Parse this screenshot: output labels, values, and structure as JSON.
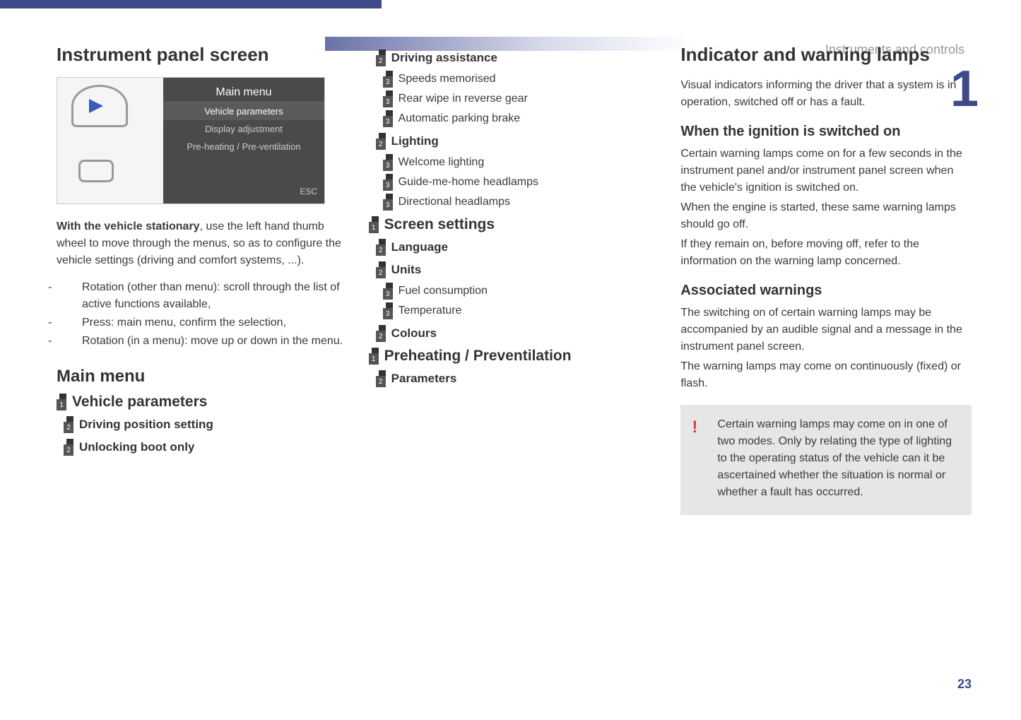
{
  "header": {
    "section_label": "Instruments and controls",
    "chapter_number": "1",
    "page_number": "23"
  },
  "col1": {
    "h1": "Instrument panel screen",
    "screen": {
      "title": "Main menu",
      "items": [
        "Vehicle parameters",
        "Display adjustment",
        "Pre-heating / Pre-ventilation"
      ],
      "esc": "ESC"
    },
    "intro_bold": "With the vehicle stationary",
    "intro_rest": ", use the left hand thumb wheel to move through the menus, so as to configure the vehicle settings (driving and comfort systems, ...).",
    "bullets": [
      "Rotation (other than menu): scroll through the list of active functions available,",
      "Press: main menu, confirm the selection,",
      "Rotation (in a menu): move up or down in the menu."
    ],
    "h2": "Main menu",
    "menu": [
      {
        "level": 1,
        "label": "Vehicle parameters"
      },
      {
        "level": 2,
        "label": "Driving position setting"
      },
      {
        "level": 2,
        "label": "Unlocking boot only"
      }
    ]
  },
  "col2": {
    "menu": [
      {
        "level": 2,
        "label": "Driving assistance"
      },
      {
        "level": 3,
        "label": "Speeds memorised"
      },
      {
        "level": 3,
        "label": "Rear wipe in reverse gear"
      },
      {
        "level": 3,
        "label": "Automatic parking brake"
      },
      {
        "level": 2,
        "label": "Lighting"
      },
      {
        "level": 3,
        "label": "Welcome lighting"
      },
      {
        "level": 3,
        "label": "Guide-me-home headlamps"
      },
      {
        "level": 3,
        "label": "Directional headlamps"
      },
      {
        "level": 1,
        "label": "Screen settings"
      },
      {
        "level": 2,
        "label": "Language"
      },
      {
        "level": 2,
        "label": "Units"
      },
      {
        "level": 3,
        "label": "Fuel consumption"
      },
      {
        "level": 3,
        "label": "Temperature"
      },
      {
        "level": 2,
        "label": "Colours"
      },
      {
        "level": 1,
        "label": "Preheating / Preventilation"
      },
      {
        "level": 2,
        "label": "Parameters"
      }
    ]
  },
  "col3": {
    "h1": "Indicator and warning lamps",
    "p1": "Visual indicators informing the driver that a system is in operation, switched off or has a fault.",
    "h3a": "When the ignition is switched on",
    "p2": "Certain warning lamps come on for a few seconds in the instrument panel and/or instrument panel screen when the vehicle's ignition is switched on.",
    "p3": "When the engine is started, these same warning lamps should go off.",
    "p4": "If they remain on, before moving off, refer to the information on the warning lamp concerned.",
    "h3b": "Associated warnings",
    "p5": "The switching on of certain warning lamps may be accompanied by an audible signal and a message in the instrument panel screen.",
    "p6": "The warning lamps may come on continuously (fixed) or flash.",
    "info": "Certain warning lamps may come on in one of two modes. Only by relating the type of lighting to the operating status of the vehicle can it be ascertained whether the situation is normal or whether a fault has occurred."
  },
  "colors": {
    "accent": "#3e4a8a",
    "box_bg": "#e6e6e6",
    "excl": "#d84040"
  }
}
